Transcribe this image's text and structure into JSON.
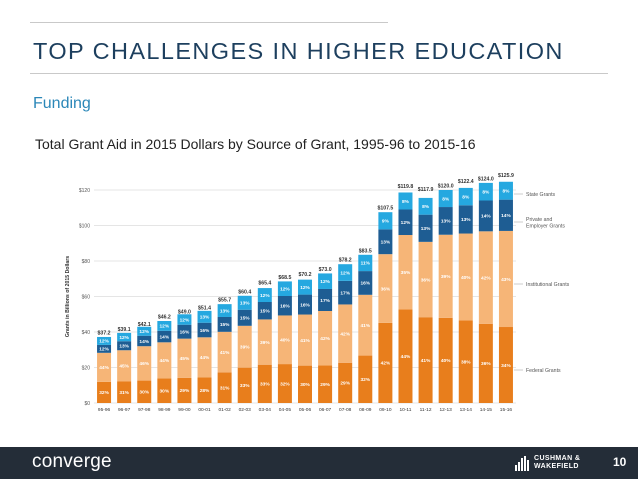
{
  "slide": {
    "title": "TOP CHALLENGES IN HIGHER EDUCATION",
    "subtitle": "Funding",
    "caption": "Total Grant Aid in 2015 Dollars by Source of Grant, 1995-96 to 2015-16",
    "page_number": "10",
    "brand": "converge",
    "partner_logo_text": "CUSHMAN &\nWAKEFIELD"
  },
  "colors": {
    "federal": "#e87e1c",
    "institutional": "#f6b577",
    "employer": "#1e5d93",
    "state": "#25a8e0",
    "footer": "#242d38",
    "title": "#1d3f5e",
    "subtitle": "#2b87b8"
  },
  "chart_data": {
    "type": "bar",
    "stacked": true,
    "ylabel": "Grants in Billions of 2015 Dollars",
    "ylim": [
      0,
      120
    ],
    "yticks": [
      0,
      20,
      40,
      60,
      80,
      100,
      120
    ],
    "ytick_labels": [
      "$0",
      "$20",
      "$40",
      "$60",
      "$80",
      "$100",
      "$120"
    ],
    "grid": true,
    "categories": [
      "95-96",
      "96-97",
      "97-98",
      "98-99",
      "99-00",
      "00-01",
      "01-02",
      "02-03",
      "03-04",
      "04-05",
      "05-06",
      "06-07",
      "07-08",
      "08-09",
      "09-10",
      "10-11",
      "11-12",
      "12-13",
      "13-14",
      "14-15",
      "15-16"
    ],
    "totals": [
      37.2,
      39.1,
      42.1,
      46.2,
      49.0,
      51.4,
      55.7,
      60.4,
      65.4,
      68.5,
      70.2,
      73.0,
      78.2,
      83.5,
      107.5,
      119.8,
      117.9,
      120.0,
      122.4,
      124.0,
      125.9
    ],
    "total_labels": [
      "$37.2",
      "$39.1",
      "$42.1",
      "$46.2",
      "$49.0",
      "$51.4",
      "$55.7",
      "$60.4",
      "$65.4",
      "$68.5",
      "$70.2",
      "$73.0",
      "$78.2",
      "$83.5",
      "$107.5",
      "$119.8",
      "$117.9",
      "$120.0",
      "$122.4",
      "$124.0",
      "$125.9"
    ],
    "series": [
      {
        "name": "Federal Grants",
        "color_key": "federal",
        "percents": [
          32,
          31,
          30,
          30,
          29,
          28,
          31,
          33,
          33,
          32,
          30,
          29,
          29,
          32,
          42,
          44,
          41,
          40,
          38,
          36,
          34
        ],
        "percent_labels": [
          "32%",
          "31%",
          "30%",
          "30%",
          "29%",
          "28%",
          "31%",
          "33%",
          "33%",
          "32%",
          "30%",
          "29%",
          "29%",
          "32%",
          "42%",
          "44%",
          "41%",
          "40%",
          "38%",
          "36%",
          "34%"
        ]
      },
      {
        "name": "Institutional Grants",
        "color_key": "institutional",
        "percents": [
          44,
          45,
          46,
          44,
          45,
          44,
          41,
          39,
          39,
          40,
          41,
          42,
          42,
          41,
          36,
          35,
          36,
          39,
          40,
          42,
          43
        ],
        "percent_labels": [
          "44%",
          "45%",
          "46%",
          "44%",
          "45%",
          "44%",
          "41%",
          "39%",
          "39%",
          "40%",
          "41%",
          "42%",
          "42%",
          "41%",
          "36%",
          "35%",
          "36%",
          "39%",
          "40%",
          "42%",
          "43%"
        ]
      },
      {
        "name": "Private and Employer Grants",
        "color_key": "employer",
        "percents": [
          12,
          13,
          14,
          14,
          16,
          16,
          15,
          15,
          15,
          16,
          16,
          17,
          17,
          16,
          13,
          12,
          13,
          13,
          13,
          14,
          14
        ],
        "percent_labels": [
          "12%",
          "13%",
          "14%",
          "14%",
          "16%",
          "16%",
          "15%",
          "15%",
          "15%",
          "16%",
          "16%",
          "17%",
          "17%",
          "16%",
          "13%",
          "12%",
          "13%",
          "13%",
          "13%",
          "14%",
          "14%"
        ]
      },
      {
        "name": "State Grants",
        "color_key": "state",
        "percents": [
          12,
          12,
          12,
          12,
          12,
          13,
          13,
          13,
          12,
          12,
          12,
          12,
          12,
          11,
          9,
          8,
          8,
          8,
          8,
          8,
          8
        ],
        "percent_labels": [
          "12%",
          "12%",
          "12%",
          "12%",
          "12%",
          "13%",
          "13%",
          "13%",
          "12%",
          "12%",
          "12%",
          "12%",
          "12%",
          "11%",
          "9%",
          "8%",
          "8%",
          "8%",
          "8%",
          "8%",
          "8%"
        ]
      }
    ],
    "legend": [
      "State Grants",
      "Private and Employer Grants",
      "Institutional Grants",
      "Federal Grants"
    ],
    "legend_placement": "right"
  }
}
